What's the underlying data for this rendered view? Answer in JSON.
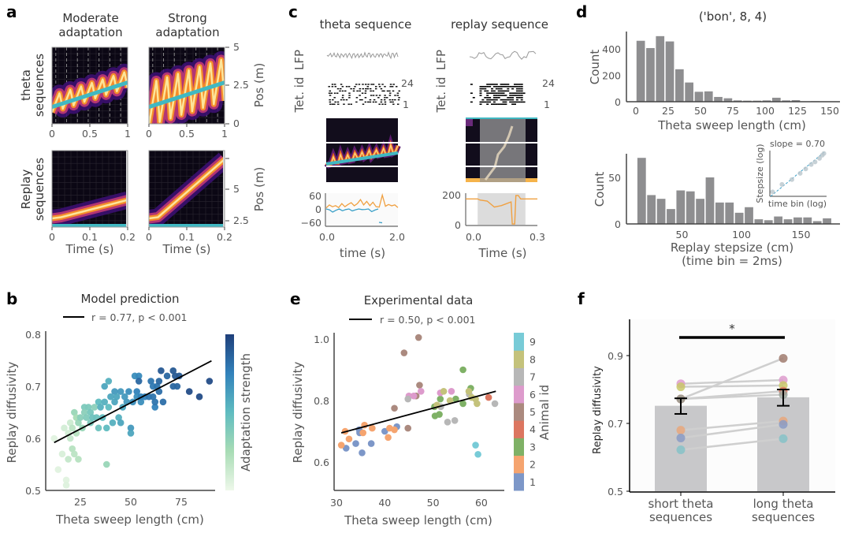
{
  "panel_labels": {
    "a": "a",
    "b": "b",
    "c": "c",
    "d": "d",
    "e": "e",
    "f": "f"
  },
  "chart_data": [
    {
      "id": "a",
      "type": "heatmap",
      "col_titles": [
        [
          "Moderate",
          "adaptation"
        ],
        [
          "Strong",
          "adaptation"
        ]
      ],
      "row_titles": [
        [
          "theta",
          "sequences"
        ],
        [
          "Replay",
          "sequences"
        ]
      ],
      "theta": {
        "xlabel": "",
        "xticks": [
          "0",
          "0.5",
          "1"
        ],
        "xlim": [
          0,
          1
        ],
        "ylabel": "Pos (m)",
        "yticks": [
          "5",
          "2.5",
          "0"
        ],
        "ylim": [
          0,
          5
        ],
        "cycles": 7,
        "moderate_amplitude_m": 0.55,
        "strong_amplitude_m": 1.4,
        "trajectory_m": [
          1.1,
          2.7
        ]
      },
      "replay": {
        "xlabel": "Time (s)",
        "xticks": [
          "0",
          "0.1",
          "0.2"
        ],
        "xlim": [
          0,
          0.2
        ],
        "ylabel": "Pos (m)",
        "yticks": [
          "5",
          "2.5"
        ],
        "moderate_end_m": 4.0,
        "strong_end_m": 7.3,
        "start_m": 2.5
      },
      "colors": {
        "trajectory": "#40b8c2",
        "band_outer": "#3b0f70",
        "band_mid": "#c03a76",
        "band_inner": "#f58d2a",
        "band_core": "#fce59a"
      }
    },
    {
      "id": "b",
      "type": "scatter",
      "title": "Model prediction",
      "legend": "r = 0.77, p < 0.001",
      "xlabel": "Theta sweep length (cm)",
      "ylabel": "Replay diffusivity",
      "colorbar_label": "Adaptation strength",
      "xticks": [
        "25",
        "50",
        "75"
      ],
      "xtick_values": [
        25,
        50,
        75
      ],
      "yticks": [
        "0.5",
        "0.6",
        "0.7",
        "0.8"
      ],
      "ytick_values": [
        0.5,
        0.6,
        0.7,
        0.8
      ],
      "xlim": [
        8,
        95
      ],
      "ylim": [
        0.5,
        0.8
      ],
      "fit": [
        [
          12,
          0.592
        ],
        [
          90,
          0.749
        ]
      ],
      "points": [
        [
          12,
          0.6,
          0.05
        ],
        [
          14,
          0.54,
          0.05
        ],
        [
          16,
          0.57,
          0.08
        ],
        [
          17,
          0.62,
          0.1
        ],
        [
          18,
          0.52,
          0.05
        ],
        [
          18,
          0.51,
          0.06
        ],
        [
          19,
          0.56,
          0.15
        ],
        [
          19,
          0.61,
          0.1
        ],
        [
          20,
          0.6,
          0.15
        ],
        [
          20,
          0.63,
          0.12
        ],
        [
          21,
          0.58,
          0.2
        ],
        [
          21,
          0.62,
          0.18
        ],
        [
          22,
          0.57,
          0.18
        ],
        [
          22,
          0.65,
          0.3
        ],
        [
          23,
          0.64,
          0.25
        ],
        [
          23,
          0.61,
          0.2
        ],
        [
          24,
          0.56,
          0.2
        ],
        [
          24,
          0.63,
          0.3
        ],
        [
          25,
          0.64,
          0.35
        ],
        [
          26,
          0.62,
          0.3
        ],
        [
          27,
          0.66,
          0.4
        ],
        [
          27,
          0.65,
          0.35
        ],
        [
          28,
          0.64,
          0.38
        ],
        [
          29,
          0.66,
          0.4
        ],
        [
          30,
          0.63,
          0.4
        ],
        [
          30,
          0.65,
          0.42
        ],
        [
          31,
          0.64,
          0.45
        ],
        [
          32,
          0.66,
          0.35
        ],
        [
          33,
          0.64,
          0.45
        ],
        [
          34,
          0.67,
          0.5
        ],
        [
          34,
          0.62,
          0.45
        ],
        [
          35,
          0.66,
          0.55
        ],
        [
          36,
          0.64,
          0.5
        ],
        [
          37,
          0.67,
          0.55
        ],
        [
          37,
          0.7,
          0.6
        ],
        [
          38,
          0.62,
          0.5
        ],
        [
          38,
          0.55,
          0.3
        ],
        [
          39,
          0.71,
          0.55
        ],
        [
          39,
          0.66,
          0.5
        ],
        [
          40,
          0.68,
          0.6
        ],
        [
          41,
          0.63,
          0.55
        ],
        [
          42,
          0.67,
          0.6
        ],
        [
          42,
          0.69,
          0.65
        ],
        [
          43,
          0.68,
          0.6
        ],
        [
          44,
          0.64,
          0.55
        ],
        [
          45,
          0.69,
          0.65
        ],
        [
          45,
          0.63,
          0.6
        ],
        [
          46,
          0.66,
          0.6
        ],
        [
          47,
          0.68,
          0.65
        ],
        [
          48,
          0.67,
          0.65
        ],
        [
          49,
          0.69,
          0.7
        ],
        [
          50,
          0.62,
          0.65
        ],
        [
          50,
          0.61,
          0.6
        ],
        [
          51,
          0.67,
          0.7
        ],
        [
          52,
          0.72,
          0.7
        ],
        [
          53,
          0.69,
          0.75
        ],
        [
          53,
          0.68,
          0.7
        ],
        [
          54,
          0.72,
          0.72
        ],
        [
          54,
          0.71,
          0.85
        ],
        [
          55,
          0.67,
          0.7
        ],
        [
          55,
          0.68,
          0.75
        ],
        [
          57,
          0.68,
          0.75
        ],
        [
          59,
          0.68,
          0.8
        ],
        [
          60,
          0.71,
          0.8
        ],
        [
          61,
          0.7,
          0.78
        ],
        [
          61,
          0.68,
          0.8
        ],
        [
          62,
          0.66,
          0.75
        ],
        [
          62,
          0.67,
          0.8
        ],
        [
          63,
          0.7,
          0.8
        ],
        [
          64,
          0.71,
          0.85
        ],
        [
          64,
          0.69,
          0.82
        ],
        [
          65,
          0.73,
          0.9
        ],
        [
          66,
          0.67,
          0.82
        ],
        [
          68,
          0.72,
          0.85
        ],
        [
          71,
          0.73,
          0.9
        ],
        [
          71,
          0.7,
          0.85
        ],
        [
          72,
          0.72,
          0.9
        ],
        [
          73,
          0.7,
          0.85
        ],
        [
          74,
          0.72,
          0.9
        ],
        [
          79,
          0.69,
          0.95
        ],
        [
          84,
          0.68,
          0.95
        ],
        [
          89,
          0.71,
          0.95
        ]
      ],
      "colormap": [
        "#eef8ea",
        "#a8dcb5",
        "#5fbcc0",
        "#3282bb",
        "#1f3f7a"
      ]
    },
    {
      "id": "c",
      "type": "line",
      "titles": [
        "theta sequence",
        "replay sequence"
      ],
      "row_labels": [
        "LFP",
        "Tet. id"
      ],
      "raster_ticks": [
        "24",
        "1"
      ],
      "theta": {
        "xticks": [
          "0.0",
          "2.0"
        ],
        "xlim": [
          0,
          2
        ],
        "yticks": [
          "60",
          "0",
          "−60"
        ],
        "ylim": [
          -70,
          70
        ],
        "xlabel": "time (s)",
        "orange": [
          5,
          18,
          10,
          15,
          6,
          24,
          10,
          20,
          28,
          14,
          24,
          42,
          18,
          34,
          15,
          30,
          10,
          8,
          62,
          12,
          20,
          14,
          18,
          6
        ],
        "blue": [
          0,
          -4,
          -14,
          -6,
          0,
          -8,
          -3,
          0,
          -9,
          -4,
          0,
          -3,
          -2,
          0,
          -12,
          -5,
          0,
          -60
        ]
      },
      "replay": {
        "xticks": [
          "0.0",
          "0.3"
        ],
        "xlim": [
          0,
          0.3
        ],
        "yticks": [
          "200",
          "0"
        ],
        "ylim": [
          0,
          200
        ],
        "xlabel": "Time (s)",
        "shade": [
          0.05,
          0.25
        ],
        "orange": [
          [
            0,
            172
          ],
          [
            0.05,
            172
          ],
          [
            0.06,
            165
          ],
          [
            0.09,
            158
          ],
          [
            0.12,
            118
          ],
          [
            0.15,
            128
          ],
          [
            0.19,
            152
          ],
          [
            0.195,
            5
          ],
          [
            0.205,
            5
          ],
          [
            0.21,
            195
          ],
          [
            0.22,
            195
          ],
          [
            0.23,
            172
          ],
          [
            0.3,
            172
          ]
        ]
      }
    },
    {
      "id": "d-top",
      "type": "bar",
      "title": "('bon', 8, 4)",
      "xlabel": "Theta sweep length (cm)",
      "ylabel": "Count",
      "xticks": [
        "0",
        "25",
        "50",
        "75",
        "100",
        "125",
        "150"
      ],
      "xtick_values": [
        0,
        25,
        50,
        75,
        100,
        125,
        150
      ],
      "yticks": [
        "0",
        "200",
        "400"
      ],
      "ytick_values": [
        0,
        200,
        400
      ],
      "bin_start": 0,
      "bin_width": 7.5,
      "values": [
        460,
        405,
        495,
        455,
        245,
        145,
        75,
        78,
        36,
        26,
        10,
        8,
        8,
        10,
        30,
        10,
        12,
        0,
        4,
        0
      ]
    },
    {
      "id": "d-bottom",
      "type": "bar",
      "xlabel": "Replay stepsize (cm)",
      "xlabel2": "(time bin = 2ms)",
      "ylabel": "Count",
      "xticks": [
        "50",
        "100",
        "150"
      ],
      "xtick_values": [
        50,
        100,
        150
      ],
      "yticks": [
        "0",
        "50"
      ],
      "ytick_values": [
        0,
        50
      ],
      "bin_start": 12,
      "bin_width": 8.2,
      "values": [
        71,
        31,
        27,
        16,
        36,
        35,
        27,
        50,
        23,
        23,
        12,
        18,
        5,
        4,
        8,
        5,
        7,
        7,
        3,
        6
      ],
      "inset": {
        "title": "slope = 0.70",
        "xlabel": "time bin (log)",
        "ylabel": "Stepsize (log)",
        "slope": 0.7,
        "points": [
          [
            0.05,
            0.1
          ],
          [
            0.22,
            0.27
          ],
          [
            0.4,
            0.38
          ],
          [
            0.55,
            0.52
          ],
          [
            0.65,
            0.62
          ],
          [
            0.75,
            0.72
          ],
          [
            0.82,
            0.78
          ],
          [
            0.9,
            0.86
          ],
          [
            0.95,
            0.93
          ],
          [
            0.98,
            0.97
          ]
        ]
      }
    },
    {
      "id": "e",
      "type": "scatter",
      "title": "Experimental data",
      "legend": "r = 0.50, p < 0.001",
      "xlabel": "Theta sweep length (cm)",
      "ylabel": "Replay diffusivity",
      "colorbar_label": "Animal id",
      "colorbar_ticks": [
        "1",
        "2",
        "3",
        "4",
        "5",
        "6",
        "7",
        "8",
        "9"
      ],
      "animal_colors": [
        "#7d97c8",
        "#f5a46f",
        "#7fb166",
        "#dc7660",
        "#ab8a7f",
        "#dd9bcc",
        "#b7b7b7",
        "#c4c27b",
        "#78cbd7"
      ],
      "xticks": [
        "30",
        "40",
        "50",
        "60"
      ],
      "xtick_values": [
        30,
        40,
        50,
        60
      ],
      "yticks": [
        "0.6",
        "0.8",
        "1.0"
      ],
      "ytick_values": [
        0.6,
        0.8,
        1.0
      ],
      "xlim": [
        29.5,
        64.5
      ],
      "ylim": [
        0.5,
        1.03
      ],
      "fit": [
        [
          31,
          0.695
        ],
        [
          63,
          0.83
        ]
      ],
      "points": [
        [
          32,
          0.645,
          1
        ],
        [
          34,
          0.66,
          1
        ],
        [
          34.7,
          0.705,
          1
        ],
        [
          34.8,
          0.695,
          1
        ],
        [
          35.3,
          0.63,
          1
        ],
        [
          37.2,
          0.66,
          1
        ],
        [
          40,
          0.7,
          1
        ],
        [
          42.5,
          0.715,
          1
        ],
        [
          31,
          0.655,
          2
        ],
        [
          31.8,
          0.7,
          2
        ],
        [
          32.6,
          0.675,
          2
        ],
        [
          35.8,
          0.72,
          2
        ],
        [
          35.5,
          0.695,
          2
        ],
        [
          37.4,
          0.71,
          2
        ],
        [
          40.7,
          0.68,
          2
        ],
        [
          41,
          0.71,
          2
        ],
        [
          42,
          0.705,
          2
        ],
        [
          50.3,
          0.78,
          3
        ],
        [
          50.4,
          0.75,
          3
        ],
        [
          51.3,
          0.755,
          3
        ],
        [
          51.5,
          0.805,
          3
        ],
        [
          54.7,
          0.805,
          3
        ],
        [
          56.2,
          0.79,
          3
        ],
        [
          56.2,
          0.9,
          3
        ],
        [
          57.8,
          0.84,
          3
        ],
        [
          61.5,
          0.81,
          4
        ],
        [
          44,
          0.955,
          5
        ],
        [
          47,
          1.005,
          5
        ],
        [
          46.5,
          0.815,
          5
        ],
        [
          47.2,
          0.85,
          5
        ],
        [
          42,
          0.775,
          5
        ],
        [
          44.8,
          0.71,
          5
        ],
        [
          45,
          0.815,
          6
        ],
        [
          46,
          0.815,
          6
        ],
        [
          47.5,
          0.83,
          6
        ],
        [
          51.5,
          0.825,
          6
        ],
        [
          53.8,
          0.83,
          6
        ],
        [
          44.8,
          0.805,
          7
        ],
        [
          51.6,
          0.78,
          7
        ],
        [
          53,
          0.73,
          7
        ],
        [
          54.5,
          0.735,
          7
        ],
        [
          57.5,
          0.82,
          7
        ],
        [
          62.8,
          0.79,
          7
        ],
        [
          50.8,
          0.785,
          8
        ],
        [
          52.2,
          0.83,
          8
        ],
        [
          53.5,
          0.8,
          8
        ],
        [
          57.4,
          0.83,
          8
        ],
        [
          58,
          0.81,
          8
        ],
        [
          58.8,
          0.805,
          8
        ],
        [
          59.1,
          0.79,
          8
        ],
        [
          58.8,
          0.655,
          9
        ],
        [
          59.3,
          0.625,
          9
        ]
      ]
    },
    {
      "id": "f",
      "type": "bar",
      "ylabel": "Replay diffusivity",
      "categories": [
        "short theta\nsequences",
        "long theta\nsequences"
      ],
      "category_lines": [
        [
          "short theta",
          "sequences"
        ],
        [
          "long theta",
          "sequences"
        ]
      ],
      "values": [
        0.752,
        0.777
      ],
      "errors": [
        [
          0.728,
          0.774
        ],
        [
          0.752,
          0.8
        ]
      ],
      "yticks": [
        "0.5",
        "0.7",
        "0.9"
      ],
      "ytick_values": [
        0.5,
        0.7,
        0.9
      ],
      "ylim": [
        0.5,
        0.99
      ],
      "significance": "*",
      "paired": [
        [
          0.817,
          0.828,
          "#dd9bcc"
        ],
        [
          0.808,
          0.812,
          "#c9c86a"
        ],
        [
          0.772,
          0.892,
          "#a07b6e"
        ],
        [
          0.772,
          0.795,
          "#dc7660"
        ],
        [
          0.772,
          0.785,
          "#9aa39a"
        ],
        [
          0.68,
          0.707,
          "#e8a77c"
        ],
        [
          0.657,
          0.697,
          "#8a9bc6"
        ],
        [
          0.622,
          0.655,
          "#86c2c8"
        ]
      ]
    }
  ]
}
